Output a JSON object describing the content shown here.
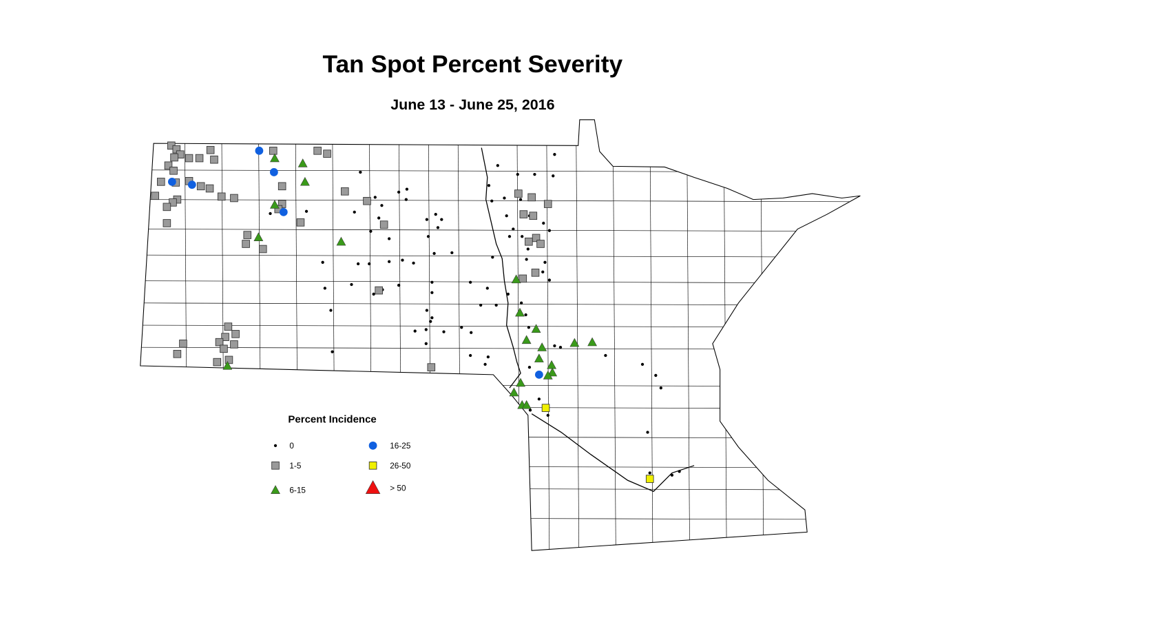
{
  "title": "Tan Spot Percent Severity",
  "subtitle": "June 13 - June 25, 2016",
  "legend": {
    "title": "Percent Incidence",
    "items": [
      {
        "label": "0",
        "symbol": "dot",
        "color": "#000000"
      },
      {
        "label": "1-5",
        "symbol": "square",
        "color": "#9a9a9a"
      },
      {
        "label": "6-15",
        "symbol": "triangle",
        "color": "#3a9a1a"
      },
      {
        "label": "16-25",
        "symbol": "circle",
        "color": "#1060e0"
      },
      {
        "label": "26-50",
        "symbol": "square",
        "color": "#f0f000"
      },
      {
        "label": "> 50",
        "symbol": "triangle",
        "color": "#ee1010"
      }
    ]
  }
}
